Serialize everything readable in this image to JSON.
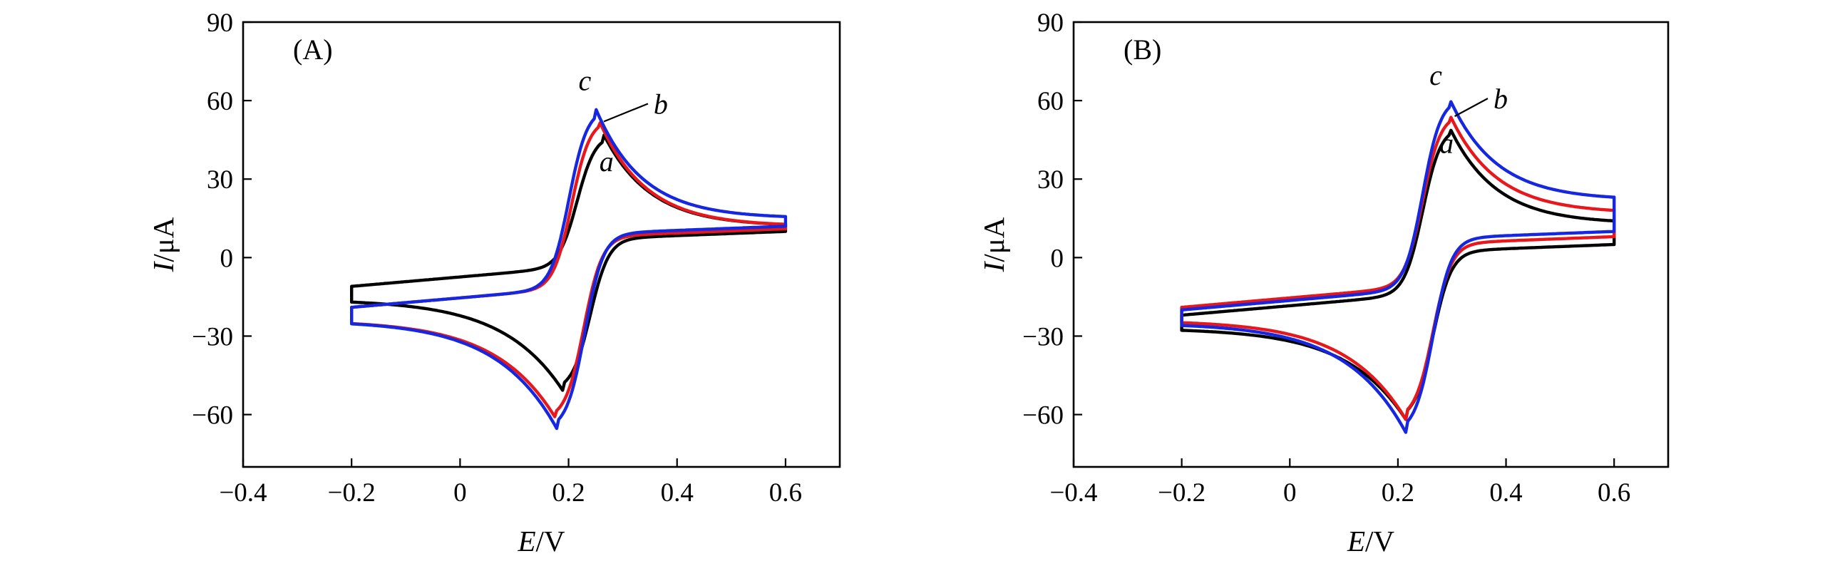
{
  "chart_data": [
    {
      "type": "line",
      "panel_label": "(A)",
      "xlabel": {
        "italic": "E",
        "unit": "/V"
      },
      "ylabel": {
        "italic": "I",
        "unit": "/μA"
      },
      "xlim": [
        -0.4,
        0.7
      ],
      "ylim": [
        -80,
        90
      ],
      "xticks": [
        -0.4,
        -0.2,
        0,
        0.2,
        0.4,
        0.6
      ],
      "xtick_labels": [
        "−0.4",
        "−0.2",
        "0",
        "0.2",
        "0.4",
        "0.6"
      ],
      "yticks": [
        90,
        60,
        30,
        0,
        -30,
        -60
      ],
      "ytick_labels": [
        "90",
        "60",
        "30",
        "0",
        "−30",
        "−60"
      ],
      "series": [
        {
          "name": "a",
          "color": "#000000",
          "ox_peak": [
            0.265,
            47
          ],
          "red_peak": [
            0.19,
            -51
          ],
          "end_high": 12,
          "end_low": -16,
          "ox_tail": 12,
          "red_tail": 10
        },
        {
          "name": "b",
          "color": "#e8171b",
          "ox_peak": [
            0.255,
            53
          ],
          "red_peak": [
            0.178,
            -62
          ],
          "end_high": 12,
          "end_low": -24,
          "ox_tail": 12,
          "red_tail": 11
        },
        {
          "name": "c",
          "color": "#1527e0",
          "ox_peak": [
            0.25,
            57
          ],
          "red_peak": [
            0.18,
            -66
          ],
          "end_high": 15,
          "end_low": -24,
          "ox_tail": 15,
          "red_tail": 12
        }
      ],
      "curve_labels": [
        {
          "text": "c",
          "pos": [
            0.23,
            64
          ]
        },
        {
          "text": "b",
          "pos": [
            0.37,
            55
          ]
        },
        {
          "text": "a",
          "pos": [
            0.27,
            33
          ]
        }
      ]
    },
    {
      "type": "line",
      "panel_label": "(B)",
      "xlabel": {
        "italic": "E",
        "unit": "/V"
      },
      "ylabel": {
        "italic": "I",
        "unit": "/μA"
      },
      "xlim": [
        -0.4,
        0.7
      ],
      "ylim": [
        -80,
        90
      ],
      "xticks": [
        -0.4,
        -0.2,
        0,
        0.2,
        0.4,
        0.6
      ],
      "xtick_labels": [
        "−0.4",
        "−0.2",
        "0",
        "0.2",
        "0.4",
        "0.6"
      ],
      "yticks": [
        90,
        60,
        30,
        0,
        -30,
        -60
      ],
      "ytick_labels": [
        "90",
        "60",
        "30",
        "0",
        "−30",
        "−60"
      ],
      "series": [
        {
          "name": "a",
          "color": "#000000",
          "ox_peak": [
            0.295,
            50
          ],
          "red_peak": [
            0.215,
            -62
          ],
          "end_high": 13,
          "end_low": -27,
          "ox_tail": 13,
          "red_tail": 5
        },
        {
          "name": "b",
          "color": "#e8171b",
          "ox_peak": [
            0.295,
            55
          ],
          "red_peak": [
            0.215,
            -62
          ],
          "end_high": 17,
          "end_low": -24,
          "ox_tail": 17,
          "red_tail": 8
        },
        {
          "name": "c",
          "color": "#1527e0",
          "ox_peak": [
            0.295,
            61
          ],
          "red_peak": [
            0.215,
            -67
          ],
          "end_high": 22,
          "end_low": -25,
          "ox_tail": 22,
          "red_tail": 10
        }
      ],
      "curve_labels": [
        {
          "text": "c",
          "pos": [
            0.27,
            66
          ]
        },
        {
          "text": "b",
          "pos": [
            0.39,
            57
          ]
        },
        {
          "text": "a",
          "pos": [
            0.29,
            40
          ]
        }
      ]
    }
  ]
}
